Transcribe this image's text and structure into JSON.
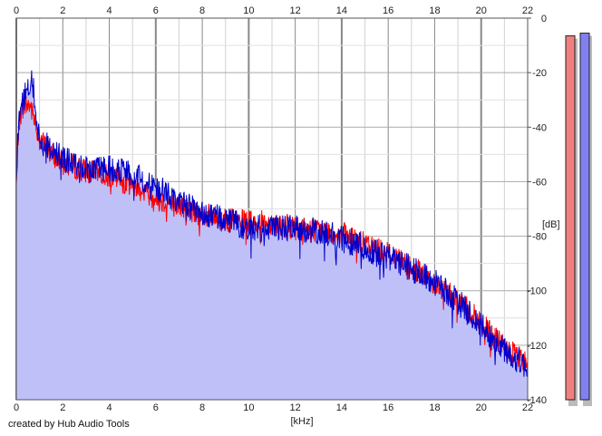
{
  "chart_data": {
    "type": "area",
    "xlabel": "[kHz]",
    "ylabel": "[dB]",
    "xlim": [
      0,
      22
    ],
    "ylim": [
      -140,
      0
    ],
    "x_ticks": [
      0,
      2,
      4,
      6,
      8,
      10,
      12,
      14,
      16,
      18,
      20,
      22
    ],
    "y_ticks": [
      0,
      -20,
      -40,
      -60,
      -80,
      -100,
      -120,
      -140
    ],
    "grid": true,
    "series": [
      {
        "color": "#ff0000",
        "envelope": {
          "x": [
            0,
            0.1,
            0.3,
            0.6,
            0.8,
            1.0,
            1.5,
            2.0,
            3.0,
            4.0,
            5.0,
            6.0,
            7.0,
            8.0,
            9.0,
            10.0,
            11.0,
            12.0,
            13.0,
            14.0,
            15.0,
            16.0,
            17.0,
            18.0,
            19.0,
            20.0,
            21.0,
            22.0
          ],
          "y": [
            -62,
            -38,
            -32,
            -32,
            -38,
            -44,
            -50,
            -53,
            -56,
            -58,
            -61,
            -66,
            -69,
            -72,
            -74,
            -75,
            -75,
            -77,
            -78,
            -79,
            -83,
            -86,
            -91,
            -97,
            -103,
            -112,
            -121,
            -127
          ]
        }
      },
      {
        "color": "#0000cc",
        "envelope": {
          "x": [
            0,
            0.1,
            0.3,
            0.6,
            0.7,
            0.8,
            1.0,
            1.5,
            2.0,
            3.0,
            4.0,
            5.0,
            6.0,
            7.0,
            8.0,
            9.0,
            10.0,
            11.0,
            12.0,
            13.0,
            14.0,
            15.0,
            16.0,
            17.0,
            18.0,
            19.0,
            20.0,
            21.0,
            22.0
          ],
          "y": [
            -62,
            -36,
            -30,
            -25,
            -22,
            -34,
            -44,
            -48,
            -52,
            -55,
            -55,
            -57,
            -62,
            -67,
            -72,
            -74,
            -77,
            -77,
            -77,
            -78,
            -81,
            -84,
            -88,
            -92,
            -97,
            -104,
            -113,
            -122,
            -128
          ]
        }
      }
    ],
    "fill_color": "#c0c0f8",
    "meters": [
      {
        "channel": "left",
        "color": "#f08080",
        "level": -6.5
      },
      {
        "channel": "right",
        "color": "#8080f0",
        "level": -5.5
      }
    ]
  },
  "footer": {
    "credit": "created by Hub Audio Tools"
  }
}
